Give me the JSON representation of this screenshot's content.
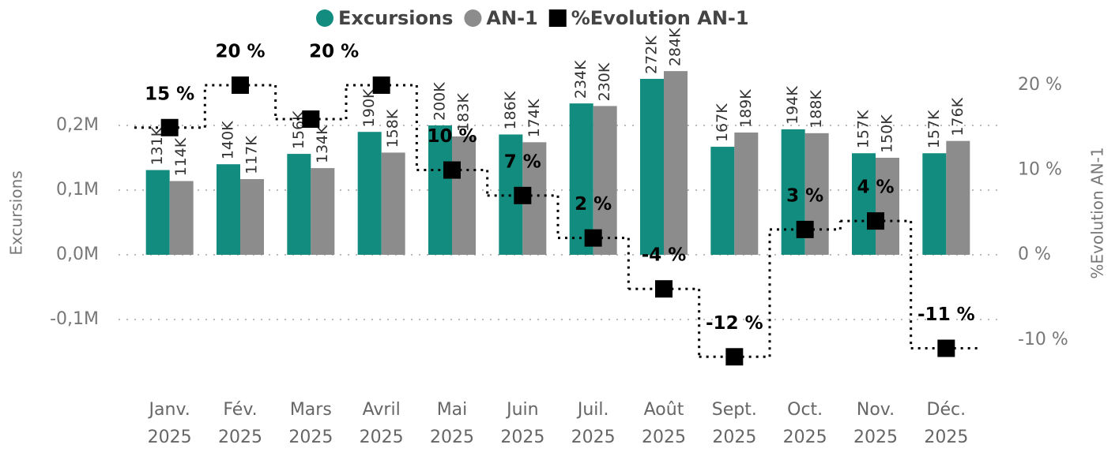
{
  "chart_data": {
    "type": "bar",
    "categories": [
      "Janv. 2025",
      "Fév. 2025",
      "Mars 2025",
      "Avril 2025",
      "Mai 2025",
      "Juin 2025",
      "Juil. 2025",
      "Août 2025",
      "Sept. 2025",
      "Oct. 2025",
      "Nov. 2025",
      "Déc. 2025"
    ],
    "y_label": "Excursions",
    "y2_label": "%Evolution AN-1",
    "ylim": [
      -180000,
      320000
    ],
    "yticks": [
      {
        "value": -100000,
        "label": "-0,1M"
      },
      {
        "value": 0,
        "label": "0,0M"
      },
      {
        "value": 100000,
        "label": "0,1M"
      },
      {
        "value": 200000,
        "label": "0,2M"
      }
    ],
    "y2lim": [
      -13.7,
      24.4
    ],
    "y2ticks": [
      {
        "value": -10,
        "label": "-10 %"
      },
      {
        "value": 0,
        "label": "0 %"
      },
      {
        "value": 10,
        "label": "10 %"
      },
      {
        "value": 20,
        "label": "20 %"
      }
    ],
    "grid": true,
    "legend": "top",
    "series": [
      {
        "name": "Excursions",
        "type": "bar",
        "color": "#128c7e",
        "values": [
          131000,
          140000,
          156000,
          190000,
          200000,
          186000,
          234000,
          272000,
          167000,
          194000,
          157000,
          157000
        ],
        "value_labels": [
          "131K",
          "140K",
          "156K",
          "190K",
          "200K",
          "186K",
          "234K",
          "272K",
          "167K",
          "194K",
          "157K",
          "157K"
        ]
      },
      {
        "name": "AN-1",
        "type": "bar",
        "color": "#8c8c8c",
        "values": [
          114000,
          117000,
          134000,
          158000,
          183000,
          174000,
          230000,
          284000,
          189000,
          188000,
          150000,
          176000
        ],
        "value_labels": [
          "114K",
          "117K",
          "134K",
          "158K",
          "183K",
          "174K",
          "230K",
          "284K",
          "189K",
          "188K",
          "150K",
          "176K"
        ]
      },
      {
        "name": "%Evolution AN-1",
        "type": "line",
        "axis": "y2",
        "color": "#000000",
        "values": [
          15,
          20,
          16,
          20,
          10,
          7,
          2,
          -4,
          -12,
          3,
          4,
          -11
        ],
        "value_labels": [
          "15 %",
          "20 %",
          null,
          "20 %",
          "10 %",
          "7 %",
          "2 %",
          "-4 %",
          "-12 %",
          "3 %",
          "4 %",
          "-11 %"
        ]
      }
    ]
  }
}
